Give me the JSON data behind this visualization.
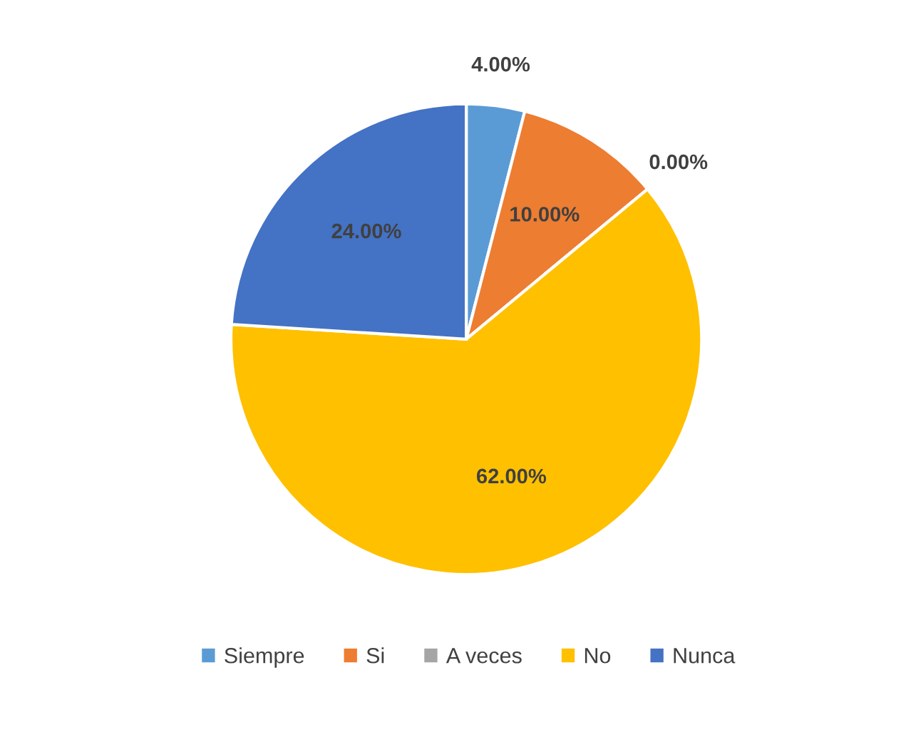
{
  "chart_data": {
    "type": "pie",
    "categories": [
      "Siempre",
      "Si",
      "A veces",
      "No",
      "Nunca"
    ],
    "values": [
      4,
      10,
      0,
      62,
      24
    ],
    "colors": [
      "#5b9bd5",
      "#ed7d31",
      "#a5a5a5",
      "#ffc000",
      "#4472c4"
    ],
    "value_labels": [
      "4.00%",
      "10.00%",
      "0.00%",
      "62.00%",
      "24.00%"
    ],
    "legend": "bottom"
  }
}
